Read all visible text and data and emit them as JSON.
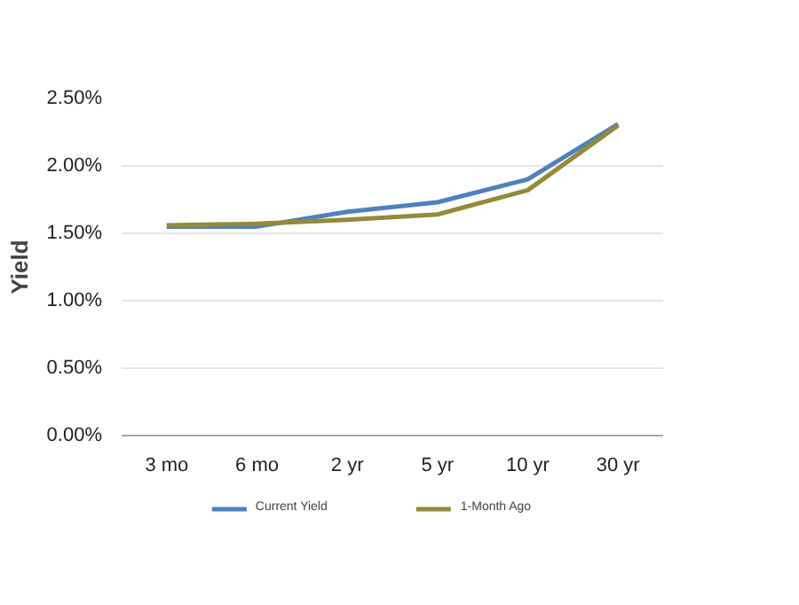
{
  "chart_data": {
    "type": "line",
    "ylabel": "Yield",
    "categories": [
      "3 mo",
      "6 mo",
      "2 yr",
      "5 yr",
      "10 yr",
      "30 yr"
    ],
    "series": [
      {
        "name": "Current Yield",
        "color": "#4f81bd",
        "values": [
          1.55,
          1.55,
          1.66,
          1.73,
          1.9,
          2.31
        ]
      },
      {
        "name": "1-Month Ago",
        "color": "#948a3a",
        "values": [
          1.56,
          1.57,
          1.6,
          1.64,
          1.82,
          2.3
        ]
      }
    ],
    "ylim": [
      0,
      2.5
    ],
    "yticks": [
      {
        "value": 0,
        "label": "0.00%"
      },
      {
        "value": 0.5,
        "label": "0.50%"
      },
      {
        "value": 1,
        "label": "1.00%"
      },
      {
        "value": 1.5,
        "label": "1.50%"
      },
      {
        "value": 2,
        "label": "2.00%"
      },
      {
        "value": 2.5,
        "label": "2.50%"
      }
    ],
    "grid": "y",
    "legend": "bottom",
    "marker": "none",
    "line_style": "solid"
  }
}
